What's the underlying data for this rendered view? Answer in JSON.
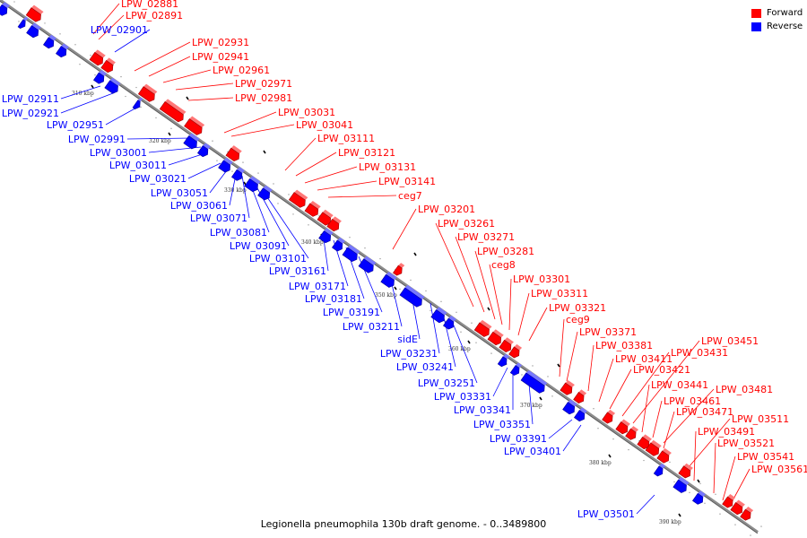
{
  "caption": "Legionella pneumophila 130b draft genome. - 0..3489800",
  "legend": {
    "forward_label": "Forward",
    "reverse_label": "Reverse",
    "forward_color": "#ff0000",
    "reverse_color": "#0000ff"
  },
  "scale_ticks": [
    "310 kbp",
    "320 kbp",
    "330 kbp",
    "340 kbp",
    "350 kbp",
    "360 kbp",
    "370 kbp",
    "380 kbp",
    "390 kbp"
  ],
  "forward_labels": [
    "LPW_02881",
    "LPW_02891",
    "LPW_02931",
    "LPW_02941",
    "LPW_02961",
    "LPW_02971",
    "LPW_02981",
    "LPW_03031",
    "LPW_03041",
    "LPW_03111",
    "LPW_03121",
    "LPW_03131",
    "LPW_03141",
    "ceg7",
    "LPW_03201",
    "LPW_03261",
    "LPW_03271",
    "LPW_03281",
    "ceg8",
    "LPW_03301",
    "LPW_03311",
    "LPW_03321",
    "ceg9",
    "LPW_03371",
    "LPW_03381",
    "LPW_03411",
    "LPW_03421",
    "LPW_03431",
    "LPW_03451",
    "LPW_03441",
    "LPW_03461",
    "LPW_03481",
    "LPW_03471",
    "LPW_03511",
    "LPW_03491",
    "LPW_03521",
    "LPW_03541",
    "LPW_03561"
  ],
  "reverse_labels": [
    "LPW_02901",
    "LPW_02911",
    "LPW_02921",
    "LPW_02951",
    "LPW_02991",
    "LPW_03001",
    "LPW_03011",
    "LPW_03021",
    "LPW_03051",
    "LPW_03061",
    "LPW_03071",
    "LPW_03081",
    "LPW_03091",
    "LPW_03101",
    "LPW_03161",
    "LPW_03171",
    "LPW_03181",
    "LPW_03191",
    "LPW_03211",
    "sidE",
    "LPW_03231",
    "LPW_03241",
    "LPW_03251",
    "LPW_03331",
    "LPW_03341",
    "LPW_03351",
    "LPW_03391",
    "LPW_03401",
    "LPW_03501"
  ]
}
